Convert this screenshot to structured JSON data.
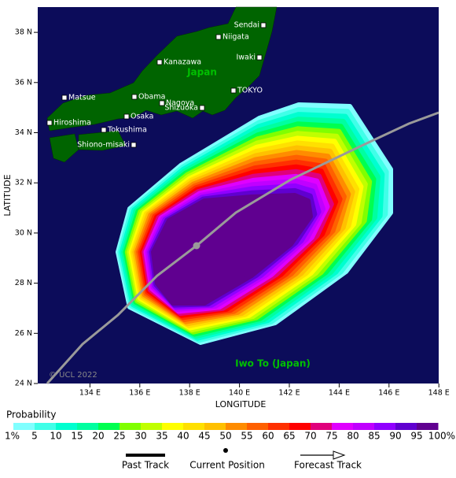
{
  "map": {
    "x_axis": {
      "label": "LONGITUDE",
      "ticks": [
        {
          "value": 134,
          "label": "134 E"
        },
        {
          "value": 136,
          "label": "136 E"
        },
        {
          "value": 138,
          "label": "138 E"
        },
        {
          "value": 140,
          "label": "140 E"
        },
        {
          "value": 142,
          "label": "142 E"
        },
        {
          "value": 144,
          "label": "144 E"
        },
        {
          "value": 146,
          "label": "146 E"
        },
        {
          "value": 148,
          "label": "148 E"
        }
      ]
    },
    "y_axis": {
      "label": "LATITUDE",
      "ticks": [
        {
          "value": 24,
          "label": "24 N"
        },
        {
          "value": 26,
          "label": "26 N"
        },
        {
          "value": 28,
          "label": "28 N"
        },
        {
          "value": 30,
          "label": "30 N"
        },
        {
          "value": 32,
          "label": "32 N"
        },
        {
          "value": 34,
          "label": "34 N"
        },
        {
          "value": 36,
          "label": "36 N"
        },
        {
          "value": 38,
          "label": "38 N"
        }
      ]
    },
    "land_label": "Japan",
    "cities": [
      "Sendai",
      "Niigata",
      "Kanazawa",
      "Iwaki",
      "TOKYO",
      "Matsue",
      "Obama",
      "Nagoya",
      "Shizuoka",
      "Hiroshima",
      "Osaka",
      "Tokushima",
      "Shiono-misaki"
    ],
    "island_label": "Iwo To (Japan)",
    "credit": "© UCL 2022"
  },
  "legend": {
    "title": "Probability",
    "labels": [
      "1%",
      "5",
      "10",
      "15",
      "20",
      "25",
      "30",
      "35",
      "40",
      "45",
      "50",
      "55",
      "60",
      "65",
      "70",
      "75",
      "80",
      "85",
      "90",
      "95",
      "100%"
    ],
    "colors": [
      "#80ffff",
      "#40ffe8",
      "#00ffd0",
      "#00ffa0",
      "#00ff50",
      "#80ff00",
      "#c0ff00",
      "#ffff00",
      "#ffe000",
      "#ffc000",
      "#ff8c00",
      "#ff6000",
      "#ff3000",
      "#ff0000",
      "#e0007c",
      "#e000ff",
      "#c000ff",
      "#9000ff",
      "#6000d0",
      "#600090"
    ]
  },
  "key": {
    "past_track": "Past Track",
    "current_position": "Current Position",
    "forecast_track": "Forecast Track"
  }
}
